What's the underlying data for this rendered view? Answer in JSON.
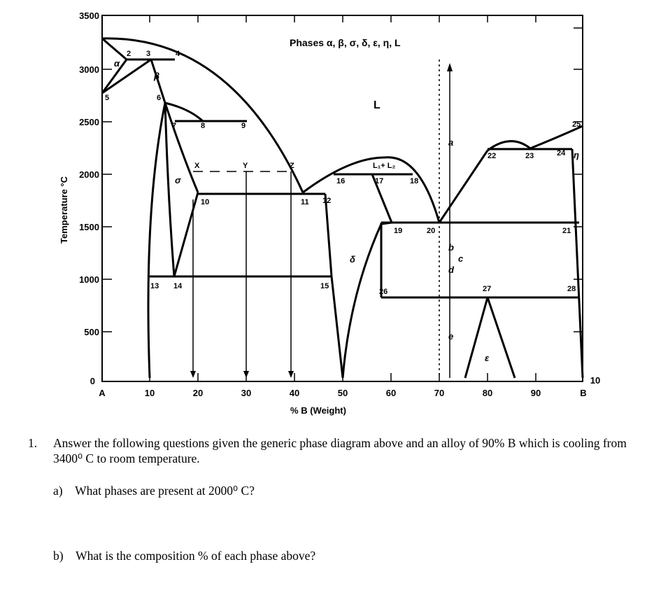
{
  "diagram": {
    "y_axis_label": "Temperature °C",
    "x_axis_label": "% B (Weight)",
    "y_ticks": [
      "3500",
      "3000",
      "2500",
      "2000",
      "1500",
      "1000",
      "500",
      "0"
    ],
    "x_ticks": [
      "A",
      "10",
      "20",
      "30",
      "40",
      "50",
      "60",
      "70",
      "80",
      "90",
      "B"
    ],
    "x_end_extra": "10",
    "phases_title": "Phases α, β, σ, δ, ε, η, L",
    "region_labels": {
      "alpha": "α",
      "beta": "β",
      "sigma": "σ",
      "delta": "δ",
      "epsilon": "ε",
      "eta": "η",
      "liquid": "L",
      "l1_l2": "L₁+ L₂",
      "line_a": "a",
      "line_b": "b",
      "line_c": "c",
      "line_d": "d",
      "line_e": "e"
    },
    "points": [
      "2",
      "3",
      "4",
      "5",
      "6",
      "7",
      "8",
      "9",
      "X",
      "Y",
      "Z",
      "10",
      "11",
      "12",
      "13",
      "14",
      "15",
      "16",
      "17",
      "18",
      "19",
      "20",
      "21",
      "22",
      "23",
      "24",
      "25",
      "26",
      "27",
      "28"
    ]
  },
  "question": {
    "number": "1.",
    "text": "Answer the following questions given the generic phase diagram above and an alloy of 90% B which is cooling from 3400⁰ C to room temperature.",
    "a": "a) What phases are present at 2000⁰ C?",
    "b": "b) What is the composition % of each phase above?"
  }
}
